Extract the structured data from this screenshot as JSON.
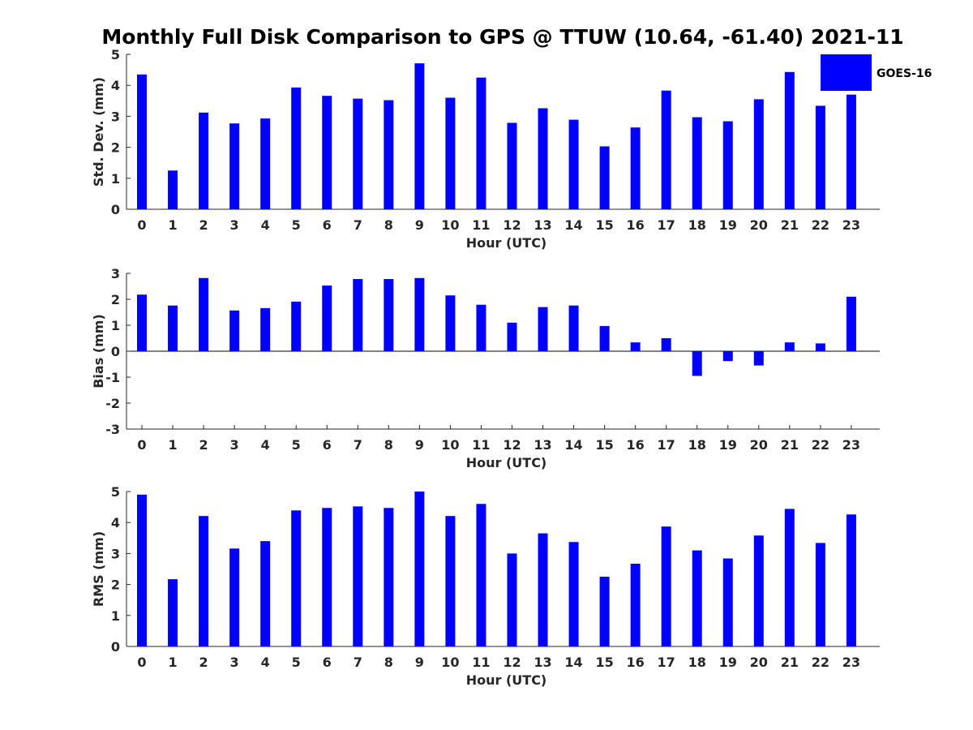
{
  "chart_data": {
    "title": "Monthly Full Disk Comparison to GPS @ TTUW (10.64, -61.40) 2021-11",
    "legend": {
      "label": "GOES-16",
      "color": "#0000ff",
      "placement": "top-right"
    },
    "bar_color": "#0000ff",
    "categories": [
      "0",
      "1",
      "2",
      "3",
      "4",
      "5",
      "6",
      "7",
      "8",
      "9",
      "10",
      "11",
      "12",
      "13",
      "14",
      "15",
      "16",
      "17",
      "18",
      "19",
      "20",
      "21",
      "22",
      "23"
    ],
    "panels": [
      {
        "type": "bar",
        "series": [
          {
            "name": "GOES-16",
            "values": [
              4.35,
              1.25,
              3.12,
              2.77,
              2.93,
              3.93,
              3.66,
              3.57,
              3.52,
              4.71,
              3.6,
              4.25,
              2.79,
              3.26,
              2.89,
              2.03,
              2.64,
              3.83,
              2.97,
              2.84,
              3.55,
              4.43,
              3.34,
              3.7
            ]
          }
        ],
        "xlabel": "Hour (UTC)",
        "ylabel": "Std. Dev. (mm)",
        "ylim": [
          0,
          5
        ],
        "yticks": [
          "0",
          "1",
          "2",
          "3",
          "4",
          "5"
        ],
        "grid": false
      },
      {
        "type": "bar",
        "series": [
          {
            "name": "GOES-16",
            "values": [
              2.18,
              1.76,
              2.82,
              1.57,
              1.66,
              1.91,
              2.53,
              2.78,
              2.78,
              2.82,
              2.15,
              1.79,
              1.1,
              1.7,
              1.76,
              0.97,
              0.34,
              0.5,
              -0.95,
              -0.38,
              -0.55,
              0.34,
              0.3,
              2.1
            ]
          }
        ],
        "xlabel": "Hour (UTC)",
        "ylabel": "Bias (mm)",
        "ylim": [
          -3,
          3
        ],
        "yticks": [
          "-3",
          "-2",
          "-1",
          "0",
          "1",
          "2",
          "3"
        ],
        "grid": false
      },
      {
        "type": "bar",
        "series": [
          {
            "name": "GOES-16",
            "values": [
              4.9,
              2.17,
              4.21,
              3.16,
              3.4,
              4.39,
              4.47,
              4.52,
              4.47,
              5.0,
              4.21,
              4.6,
              3.0,
              3.65,
              3.37,
              2.25,
              2.67,
              3.87,
              3.1,
              2.84,
              3.58,
              4.44,
              3.34,
              4.26
            ]
          }
        ],
        "xlabel": "Hour (UTC)",
        "ylabel": "RMS (mm)",
        "ylim": [
          0,
          5
        ],
        "yticks": [
          "0",
          "1",
          "2",
          "3",
          "4",
          "5"
        ],
        "grid": false
      }
    ]
  }
}
